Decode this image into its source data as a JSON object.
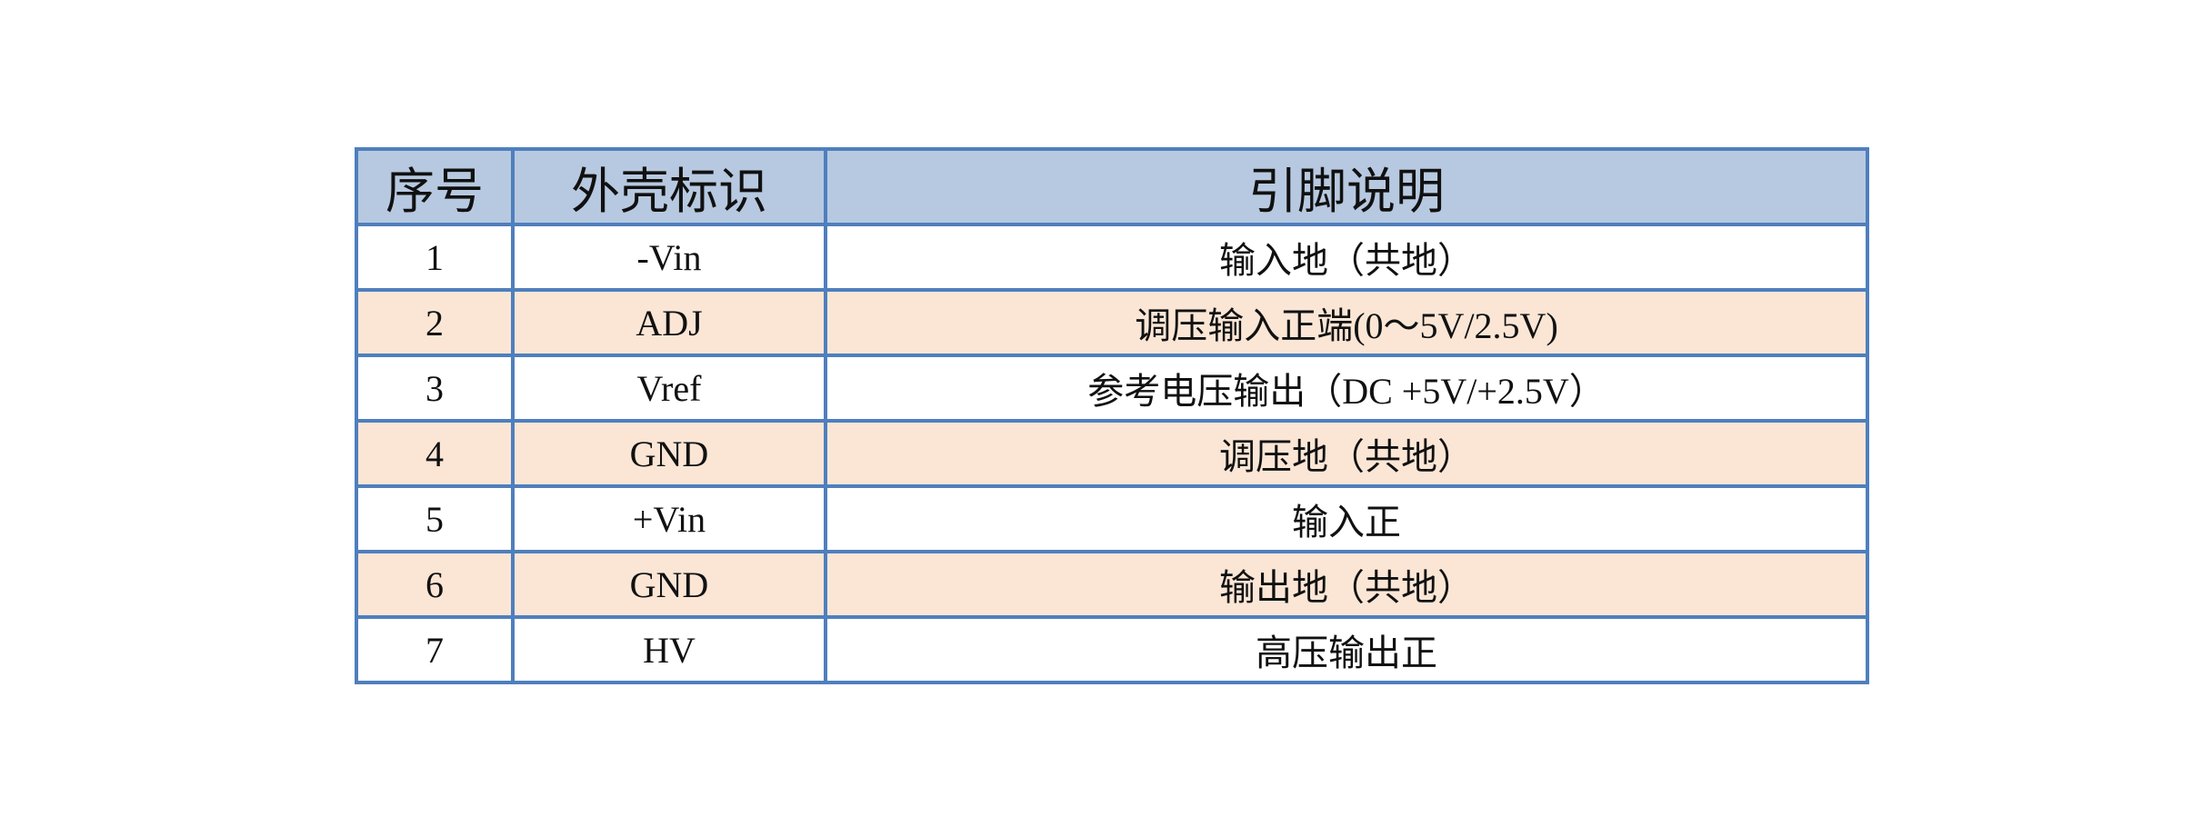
{
  "headers": [
    "序号",
    "外壳标识",
    "引脚说明"
  ],
  "rows": [
    {
      "no": "1",
      "mark": "-Vin",
      "desc": "输入地（共地）"
    },
    {
      "no": "2",
      "mark": "ADJ",
      "desc": "调压输入正端(0～5V/2.5V)"
    },
    {
      "no": "3",
      "mark": "Vref",
      "desc": "参考电压输出（DC +5V/+2.5V）"
    },
    {
      "no": "4",
      "mark": "GND",
      "desc": "调压地（共地）"
    },
    {
      "no": "5",
      "mark": "+Vin",
      "desc": "输入正"
    },
    {
      "no": "6",
      "mark": "GND",
      "desc": "输出地（共地）"
    },
    {
      "no": "7",
      "mark": "HV",
      "desc": "高压输出正"
    }
  ],
  "colors": {
    "header_bg": "#b7c9e0",
    "alt_row_bg": "#fbe6d6",
    "border": "#4f7fbd"
  }
}
